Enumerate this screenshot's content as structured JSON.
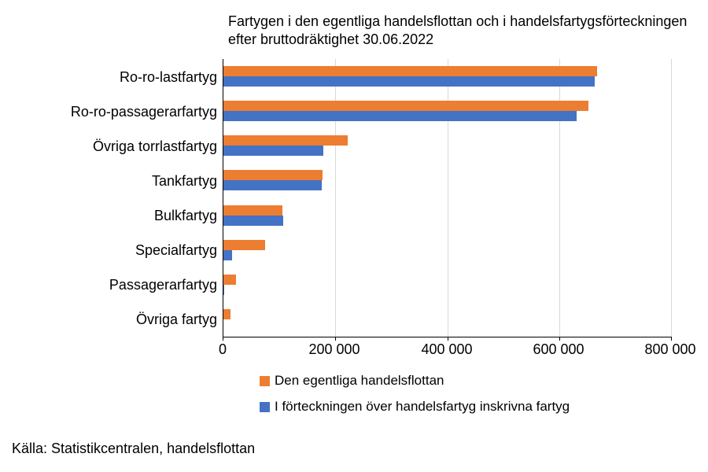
{
  "title": "Fartygen i den egentliga handelsflottan och i handelsfartygsförteckningen efter bruttodräktighet 30.06.2022",
  "source": "Källa: Statistikcentralen, handelsflottan",
  "chart_data": {
    "type": "bar",
    "orientation": "horizontal",
    "title": "Fartygen i den egentliga handelsflottan och i handelsfartygsförteckningen efter bruttodräktighet 30.06.2022",
    "categories": [
      "Ro-ro-lastfartyg",
      "Ro-ro-passagerarfartyg",
      "Övriga torrlastfartyg",
      "Tankfartyg",
      "Bulkfartyg",
      "Specialfartyg",
      "Passagerarfartyg",
      "Övriga fartyg"
    ],
    "series": [
      {
        "name": "Den egentliga handelsflottan",
        "color": "#ED7D31",
        "values": [
          668000,
          652000,
          222000,
          177000,
          106000,
          75000,
          22000,
          12000
        ]
      },
      {
        "name": "I förteckningen över handelsfartyg inskrivna fartyg",
        "color": "#4472C4",
        "values": [
          664000,
          631000,
          179000,
          176000,
          107000,
          16000,
          2000,
          0
        ]
      }
    ],
    "xlabel": "",
    "ylabel": "",
    "xlim": [
      0,
      800000
    ],
    "xticks": [
      0,
      200000,
      400000,
      600000,
      800000
    ],
    "xtick_labels": [
      "0",
      "200 000",
      "400 000",
      "600 000",
      "800 000"
    ],
    "grid": "vertical",
    "gridline_color": "#d9d9d9",
    "legend_position": "bottom"
  }
}
